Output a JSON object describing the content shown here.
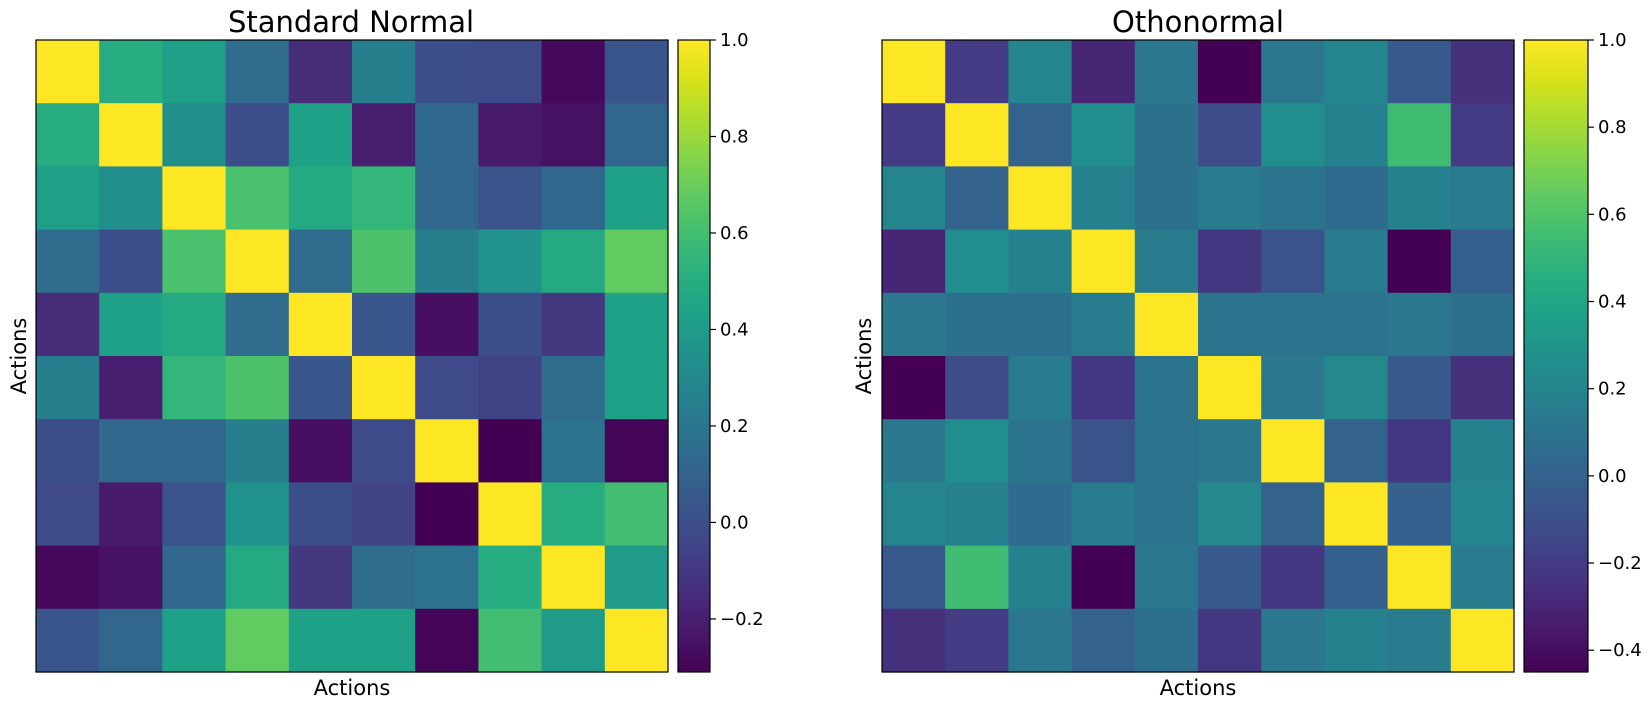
{
  "chart_data": [
    {
      "type": "heatmap",
      "title": "Standard Normal",
      "xlabel": "Actions",
      "ylabel": "Actions",
      "colormap": "viridis",
      "vmin": -0.31,
      "vmax": 1.0,
      "colorbar_ticks": [
        -0.2,
        0.0,
        0.2,
        0.4,
        0.6,
        0.8,
        1.0
      ],
      "colorbar_tick_labels": [
        "−0.2",
        "0.0",
        "0.2",
        "0.4",
        "0.6",
        "0.8",
        "1.0"
      ],
      "matrix": [
        [
          1.0,
          0.5,
          0.42,
          0.15,
          -0.15,
          0.25,
          0.0,
          -0.02,
          -0.28,
          0.03
        ],
        [
          0.5,
          1.0,
          0.33,
          0.0,
          0.43,
          -0.2,
          0.13,
          -0.22,
          -0.25,
          0.12
        ],
        [
          0.42,
          0.33,
          1.0,
          0.62,
          0.48,
          0.55,
          0.12,
          0.02,
          0.12,
          0.43
        ],
        [
          0.15,
          0.0,
          0.62,
          1.0,
          0.15,
          0.63,
          0.25,
          0.35,
          0.48,
          0.68
        ],
        [
          -0.15,
          0.43,
          0.48,
          0.15,
          1.0,
          0.04,
          -0.26,
          0.0,
          -0.1,
          0.43
        ],
        [
          0.25,
          -0.2,
          0.55,
          0.63,
          0.04,
          1.0,
          -0.02,
          -0.05,
          0.15,
          0.43
        ],
        [
          0.0,
          0.13,
          0.12,
          0.25,
          -0.26,
          -0.02,
          1.0,
          -0.31,
          0.18,
          -0.3
        ],
        [
          -0.02,
          -0.22,
          0.02,
          0.35,
          0.0,
          -0.05,
          -0.31,
          1.0,
          0.5,
          0.6
        ],
        [
          -0.28,
          -0.25,
          0.12,
          0.48,
          -0.1,
          0.15,
          0.18,
          0.5,
          1.0,
          0.4
        ],
        [
          0.03,
          0.12,
          0.43,
          0.68,
          0.43,
          0.43,
          -0.3,
          0.6,
          0.4,
          1.0
        ]
      ]
    },
    {
      "type": "heatmap",
      "title": "Othonormal",
      "xlabel": "Actions",
      "ylabel": "Actions",
      "colormap": "viridis",
      "vmin": -0.45,
      "vmax": 1.0,
      "colorbar_ticks": [
        -0.4,
        -0.2,
        0.0,
        0.2,
        0.4,
        0.6,
        0.8,
        1.0
      ],
      "colorbar_tick_labels": [
        "−0.4",
        "−0.2",
        "0.0",
        "0.2",
        "0.4",
        "0.6",
        "0.8",
        "1.0"
      ],
      "matrix": [
        [
          1.0,
          -0.2,
          0.2,
          -0.3,
          0.12,
          -0.45,
          0.12,
          0.2,
          -0.05,
          -0.25
        ],
        [
          -0.2,
          1.0,
          0.0,
          0.25,
          0.08,
          -0.12,
          0.25,
          0.18,
          0.55,
          -0.2
        ],
        [
          0.2,
          0.0,
          1.0,
          0.18,
          0.08,
          0.15,
          0.1,
          0.05,
          0.18,
          0.15
        ],
        [
          -0.3,
          0.25,
          0.18,
          1.0,
          0.15,
          -0.22,
          -0.08,
          0.15,
          -0.45,
          -0.02
        ],
        [
          0.12,
          0.08,
          0.08,
          0.15,
          1.0,
          0.1,
          0.1,
          0.1,
          0.12,
          0.08
        ],
        [
          -0.45,
          -0.12,
          0.15,
          -0.22,
          0.1,
          1.0,
          0.12,
          0.22,
          -0.05,
          -0.25
        ],
        [
          0.12,
          0.25,
          0.1,
          -0.08,
          0.1,
          0.12,
          1.0,
          0.0,
          -0.22,
          0.18
        ],
        [
          0.2,
          0.18,
          0.05,
          0.15,
          0.1,
          0.22,
          0.0,
          1.0,
          -0.02,
          0.2
        ],
        [
          -0.05,
          0.55,
          0.18,
          -0.45,
          0.12,
          -0.05,
          -0.22,
          -0.02,
          1.0,
          0.15
        ],
        [
          -0.25,
          -0.2,
          0.12,
          0.0,
          0.08,
          -0.22,
          0.12,
          0.18,
          0.15,
          1.0
        ]
      ]
    }
  ]
}
